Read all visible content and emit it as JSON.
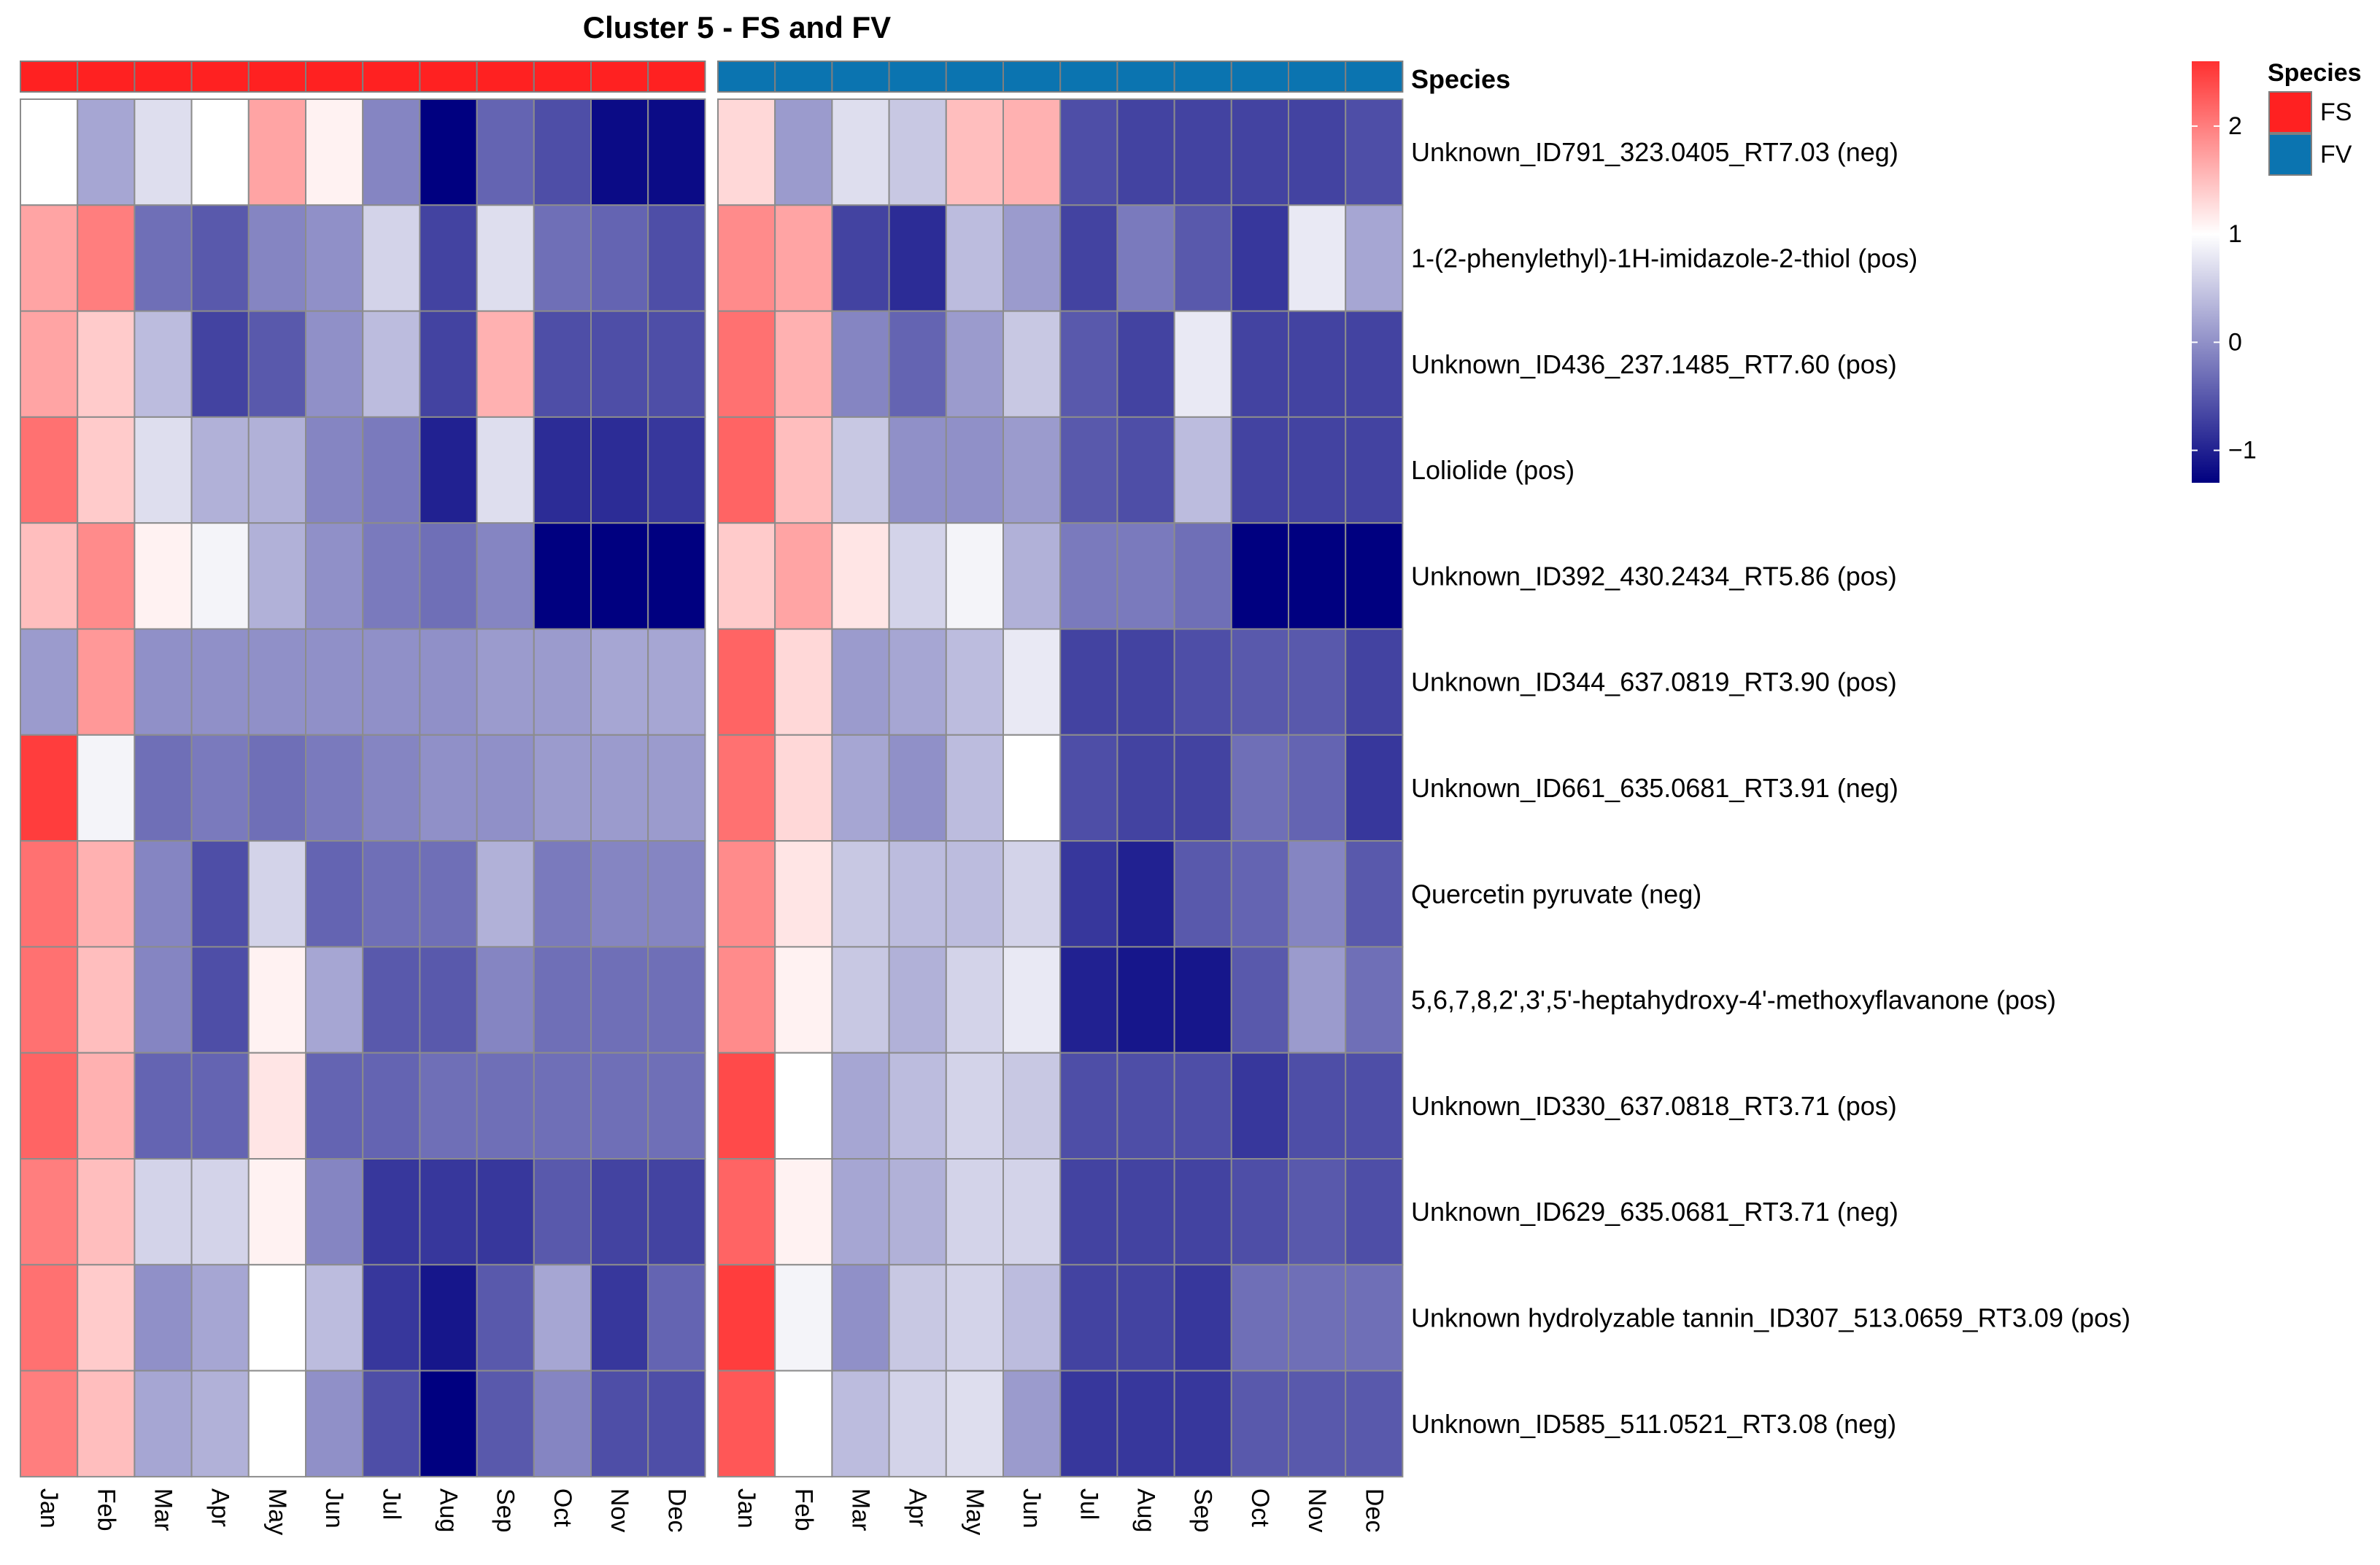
{
  "chart_data": {
    "type": "heatmap",
    "title": "Cluster 5 - FS and FV",
    "annotation_label": "Species",
    "columns": [
      "Jan",
      "Feb",
      "Mar",
      "Apr",
      "May",
      "Jun",
      "Jul",
      "Aug",
      "Sep",
      "Oct",
      "Nov",
      "Dec"
    ],
    "groups": [
      {
        "name": "FS",
        "color": "#ff2121"
      },
      {
        "name": "FV",
        "color": "#0b74b0"
      }
    ],
    "rows": [
      "Unknown_ID791_323.0405_RT7.03 (neg)",
      "1-(2-phenylethyl)-1H-imidazole-2-thiol (pos)",
      "Unknown_ID436_237.1485_RT7.60 (pos)",
      "Loliolide (pos)",
      "Unknown_ID392_430.2434_RT5.86 (pos)",
      "Unknown_ID344_637.0819_RT3.90 (pos)",
      "Unknown_ID661_635.0681_RT3.91 (neg)",
      "Quercetin pyruvate (neg)",
      "5,6,7,8,2',3',5'-heptahydroxy-4'-methoxyflavanone (pos)",
      "Unknown_ID330_637.0818_RT3.71 (pos)",
      "Unknown_ID629_635.0681_RT3.71 (neg)",
      "Unknown hydrolyzable tannin_ID307_513.0659_RT3.09 (pos)",
      "Unknown_ID585_511.0521_RT3.08 (neg)"
    ],
    "values": {
      "FS": [
        [
          1.0,
          0.2,
          0.7,
          1.0,
          1.7,
          1.1,
          -0.1,
          -1.3,
          -0.4,
          -0.6,
          -1.2,
          -1.2
        ],
        [
          1.7,
          2.0,
          -0.3,
          -0.5,
          -0.1,
          0.0,
          0.6,
          -0.7,
          0.7,
          -0.3,
          -0.4,
          -0.6
        ],
        [
          1.7,
          1.4,
          0.4,
          -0.7,
          -0.5,
          0.0,
          0.4,
          -0.7,
          1.6,
          -0.6,
          -0.6,
          -0.6
        ],
        [
          2.1,
          1.4,
          0.7,
          0.3,
          0.3,
          -0.1,
          -0.2,
          -1.0,
          0.7,
          -0.9,
          -0.9,
          -0.8
        ],
        [
          1.5,
          1.9,
          1.1,
          0.9,
          0.3,
          0.0,
          -0.2,
          -0.3,
          -0.1,
          -1.3,
          -1.3,
          -1.3
        ],
        [
          0.1,
          1.8,
          0.0,
          0.0,
          0.0,
          0.0,
          0.0,
          0.0,
          0.1,
          0.1,
          0.2,
          0.2
        ],
        [
          2.5,
          0.9,
          -0.3,
          -0.2,
          -0.3,
          -0.2,
          -0.1,
          0.0,
          0.0,
          0.1,
          0.1,
          0.1
        ],
        [
          2.1,
          1.6,
          -0.1,
          -0.6,
          0.6,
          -0.4,
          -0.3,
          -0.3,
          0.3,
          -0.2,
          -0.1,
          -0.1
        ],
        [
          2.1,
          1.5,
          -0.1,
          -0.6,
          1.1,
          0.2,
          -0.5,
          -0.5,
          -0.1,
          -0.3,
          -0.3,
          -0.3
        ],
        [
          2.2,
          1.6,
          -0.4,
          -0.4,
          1.2,
          -0.4,
          -0.4,
          -0.3,
          -0.3,
          -0.3,
          -0.3,
          -0.3
        ],
        [
          2.0,
          1.5,
          0.6,
          0.6,
          1.1,
          -0.1,
          -0.8,
          -0.8,
          -0.8,
          -0.5,
          -0.7,
          -0.7
        ],
        [
          2.1,
          1.4,
          0.0,
          0.2,
          1.0,
          0.4,
          -0.8,
          -1.1,
          -0.5,
          0.2,
          -0.8,
          -0.4
        ],
        [
          2.0,
          1.5,
          0.2,
          0.3,
          1.0,
          0.0,
          -0.6,
          -1.3,
          -0.5,
          -0.1,
          -0.6,
          -0.6
        ]
      ],
      "FV": [
        [
          1.3,
          0.1,
          0.7,
          0.5,
          1.5,
          1.6,
          -0.6,
          -0.7,
          -0.7,
          -0.7,
          -0.7,
          -0.6
        ],
        [
          1.9,
          1.7,
          -0.7,
          -0.9,
          0.4,
          0.1,
          -0.7,
          -0.2,
          -0.5,
          -0.8,
          0.8,
          0.2
        ],
        [
          2.1,
          1.6,
          -0.1,
          -0.4,
          0.1,
          0.5,
          -0.5,
          -0.7,
          0.8,
          -0.7,
          -0.7,
          -0.7
        ],
        [
          2.2,
          1.5,
          0.5,
          0.0,
          0.0,
          0.1,
          -0.5,
          -0.6,
          0.4,
          -0.7,
          -0.7,
          -0.7
        ],
        [
          1.4,
          1.7,
          1.2,
          0.6,
          0.9,
          0.3,
          -0.2,
          -0.2,
          -0.3,
          -1.3,
          -1.3,
          -1.3
        ],
        [
          2.2,
          1.3,
          0.1,
          0.2,
          0.4,
          0.8,
          -0.7,
          -0.7,
          -0.6,
          -0.5,
          -0.5,
          -0.7
        ],
        [
          2.1,
          1.3,
          0.2,
          0.0,
          0.4,
          1.0,
          -0.6,
          -0.7,
          -0.7,
          -0.3,
          -0.4,
          -0.8
        ],
        [
          1.9,
          1.2,
          0.5,
          0.4,
          0.4,
          0.6,
          -0.8,
          -1.0,
          -0.5,
          -0.4,
          -0.1,
          -0.5
        ],
        [
          1.9,
          1.1,
          0.5,
          0.3,
          0.6,
          0.8,
          -1.0,
          -1.1,
          -1.1,
          -0.5,
          0.1,
          -0.3
        ],
        [
          2.4,
          1.0,
          0.2,
          0.4,
          0.6,
          0.5,
          -0.6,
          -0.6,
          -0.6,
          -0.8,
          -0.6,
          -0.6
        ],
        [
          2.2,
          1.1,
          0.2,
          0.3,
          0.6,
          0.6,
          -0.7,
          -0.7,
          -0.7,
          -0.6,
          -0.5,
          -0.6
        ],
        [
          2.5,
          0.9,
          0.0,
          0.5,
          0.6,
          0.4,
          -0.7,
          -0.7,
          -0.8,
          -0.3,
          -0.3,
          -0.3
        ],
        [
          2.3,
          1.0,
          0.4,
          0.6,
          0.7,
          0.1,
          -0.8,
          -0.8,
          -0.8,
          -0.5,
          -0.5,
          -0.5
        ]
      ]
    },
    "color_scale": {
      "min": -1.3,
      "mid": 1.0,
      "max": 2.6,
      "low_color": "#000080",
      "mid_color": "#ffffff",
      "high_color": "#ff3030",
      "ticks": [
        2,
        1,
        0,
        -1
      ],
      "tick_labels": [
        "2",
        "1",
        "0",
        "−1"
      ]
    },
    "legend": {
      "title": "Species",
      "entries": [
        {
          "label": "FS",
          "color": "#ff2121"
        },
        {
          "label": "FV",
          "color": "#0b74b0"
        }
      ],
      "placement": "right"
    }
  }
}
